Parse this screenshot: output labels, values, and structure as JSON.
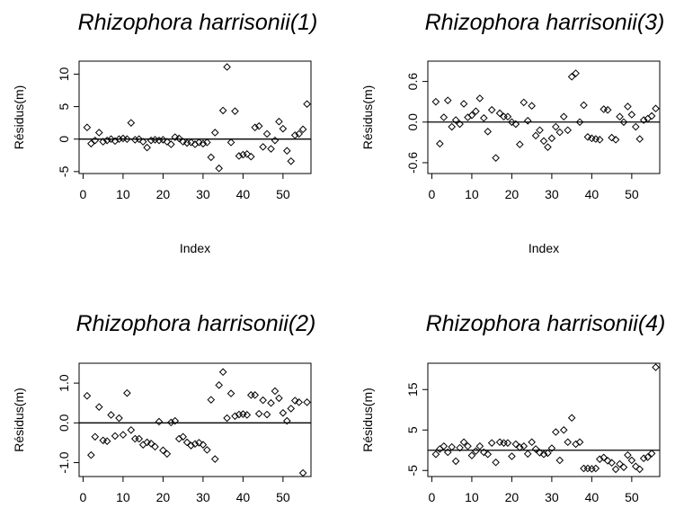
{
  "chart_data": [
    {
      "type": "scatter",
      "title": "Rhizophora harrisonii(1)",
      "ylabel": "Résidus(m)",
      "xlabel": "Index",
      "xlim": [
        -1,
        57
      ],
      "ylim": [
        -5.3,
        12
      ],
      "xticks": [
        "0",
        "10",
        "20",
        "30",
        "40",
        "50"
      ],
      "yticks": [
        "-5",
        "0",
        "5",
        "10"
      ],
      "yticks_values": [
        -5,
        0,
        5,
        10
      ],
      "hline": 0,
      "grid": false,
      "x": [
        1,
        2,
        3,
        4,
        5,
        6,
        7,
        8,
        9,
        10,
        11,
        12,
        13,
        14,
        15,
        16,
        17,
        18,
        19,
        20,
        21,
        22,
        23,
        24,
        25,
        26,
        27,
        28,
        29,
        30,
        31,
        32,
        33,
        34,
        35,
        36,
        37,
        38,
        39,
        40,
        41,
        42,
        43,
        44,
        45,
        46,
        47,
        48,
        49,
        50,
        51,
        52,
        53,
        54,
        55,
        56
      ],
      "y": [
        1.8,
        -0.7,
        -0.2,
        1.0,
        -0.4,
        -0.2,
        0.0,
        -0.3,
        0.0,
        0.1,
        0.0,
        2.5,
        -0.1,
        0.0,
        -0.4,
        -1.3,
        -0.2,
        -0.1,
        -0.2,
        -0.1,
        -0.4,
        -0.8,
        0.3,
        0.1,
        -0.4,
        -0.6,
        -0.5,
        -0.8,
        -0.5,
        -0.7,
        -0.5,
        -2.8,
        1.0,
        -4.5,
        4.4,
        11.1,
        -0.5,
        4.3,
        -2.6,
        -2.4,
        -2.3,
        -2.7,
        1.8,
        2.0,
        -1.2,
        0.8,
        -1.5,
        -0.2,
        2.7,
        1.6,
        -1.8,
        -3.4,
        0.6,
        0.8,
        1.5,
        5.4
      ]
    },
    {
      "type": "scatter",
      "title": "Rhizophora harrisonii(3)",
      "ylabel": "Résidus(m)",
      "xlabel": "Index",
      "xlim": [
        -1,
        57
      ],
      "ylim": [
        -0.76,
        0.9
      ],
      "xticks": [
        "0",
        "10",
        "20",
        "30",
        "40",
        "50"
      ],
      "yticks": [
        "-0.6",
        "0.0",
        "0.6"
      ],
      "yticks_values": [
        -0.6,
        0.0,
        0.6
      ],
      "hline": 0,
      "grid": false,
      "x": [
        1,
        2,
        3,
        4,
        5,
        6,
        7,
        8,
        9,
        10,
        11,
        12,
        13,
        14,
        15,
        16,
        17,
        18,
        19,
        20,
        21,
        22,
        23,
        24,
        25,
        26,
        27,
        28,
        29,
        30,
        31,
        32,
        33,
        34,
        35,
        36,
        37,
        38,
        39,
        40,
        41,
        42,
        43,
        44,
        45,
        46,
        47,
        48,
        49,
        50,
        51,
        52,
        53,
        54,
        55,
        56
      ],
      "y": [
        0.3,
        -0.32,
        0.07,
        0.32,
        -0.07,
        0.03,
        -0.03,
        0.27,
        0.07,
        0.1,
        0.16,
        0.35,
        0.06,
        -0.14,
        0.18,
        -0.53,
        0.13,
        0.08,
        0.08,
        0.0,
        -0.03,
        -0.33,
        0.29,
        0.02,
        0.24,
        -0.2,
        -0.12,
        -0.28,
        -0.37,
        -0.24,
        -0.07,
        -0.15,
        0.08,
        -0.12,
        0.67,
        0.72,
        0.0,
        0.25,
        -0.22,
        -0.24,
        -0.25,
        -0.26,
        0.19,
        0.18,
        -0.23,
        -0.26,
        0.08,
        0.0,
        0.23,
        0.11,
        -0.07,
        -0.25,
        0.03,
        0.05,
        0.09,
        0.2
      ]
    },
    {
      "type": "scatter",
      "title": "Rhizophora harrisonii(2)",
      "ylabel": "Résidus(m)",
      "xlabel": "",
      "xlim": [
        -1,
        57
      ],
      "ylim": [
        -1.35,
        1.5
      ],
      "xticks": [
        "0",
        "10",
        "20",
        "30",
        "40",
        "50"
      ],
      "yticks": [
        "-1.0",
        "0.0",
        "1.0"
      ],
      "yticks_values": [
        -1.0,
        0.0,
        1.0
      ],
      "hline": 0,
      "grid": false,
      "x": [
        1,
        2,
        3,
        4,
        5,
        6,
        7,
        8,
        9,
        10,
        11,
        12,
        13,
        14,
        15,
        16,
        17,
        18,
        19,
        20,
        21,
        22,
        23,
        24,
        25,
        26,
        27,
        28,
        29,
        30,
        31,
        32,
        33,
        34,
        35,
        36,
        37,
        38,
        39,
        40,
        41,
        42,
        43,
        44,
        45,
        46,
        47,
        48,
        49,
        50,
        51,
        52,
        53,
        54,
        55,
        56
      ],
      "y": [
        0.68,
        -0.81,
        -0.35,
        0.4,
        -0.44,
        -0.46,
        0.2,
        -0.33,
        0.12,
        -0.3,
        0.75,
        -0.18,
        -0.4,
        -0.4,
        -0.55,
        -0.49,
        -0.52,
        -0.6,
        0.03,
        -0.69,
        -0.78,
        0.01,
        0.05,
        -0.4,
        -0.35,
        -0.49,
        -0.57,
        -0.53,
        -0.5,
        -0.55,
        -0.68,
        0.58,
        -0.91,
        0.95,
        1.28,
        0.12,
        0.74,
        0.17,
        0.21,
        0.22,
        0.2,
        0.7,
        0.7,
        0.23,
        0.57,
        0.21,
        0.5,
        0.8,
        0.62,
        0.25,
        0.05,
        0.36,
        0.56,
        0.52,
        -1.26,
        0.52
      ]
    },
    {
      "type": "scatter",
      "title": "Rhizophora harrisonii(4)",
      "ylabel": "Résidus(m)",
      "xlabel": "",
      "xlim": [
        -1,
        57
      ],
      "ylim": [
        -6.5,
        21.5
      ],
      "xticks": [
        "0",
        "10",
        "20",
        "30",
        "40",
        "50"
      ],
      "yticks": [
        "-5",
        "5",
        "15"
      ],
      "yticks_values": [
        -5,
        5,
        15
      ],
      "hline": 0,
      "grid": false,
      "x": [
        1,
        2,
        3,
        4,
        5,
        6,
        7,
        8,
        9,
        10,
        11,
        12,
        13,
        14,
        15,
        16,
        17,
        18,
        19,
        20,
        21,
        22,
        23,
        24,
        25,
        26,
        27,
        28,
        29,
        30,
        31,
        32,
        33,
        34,
        35,
        36,
        37,
        38,
        39,
        40,
        41,
        42,
        43,
        44,
        45,
        46,
        47,
        48,
        49,
        50,
        51,
        52,
        53,
        54,
        55,
        56
      ],
      "y": [
        -1.0,
        0.3,
        1.0,
        -0.5,
        0.8,
        -2.7,
        0.6,
        2.0,
        1.0,
        -1.3,
        -0.2,
        1.0,
        -0.5,
        -1.0,
        1.8,
        -3.0,
        2.0,
        1.8,
        1.8,
        -1.5,
        1.5,
        0.7,
        1.0,
        -0.9,
        2.0,
        0.3,
        -0.6,
        -1.0,
        -0.7,
        0.5,
        4.5,
        -2.5,
        5.0,
        2.0,
        8.0,
        1.5,
        2.0,
        -4.5,
        -4.5,
        -4.6,
        -4.5,
        -2.2,
        -1.8,
        -2.6,
        -3.1,
        -4.7,
        -3.4,
        -4.2,
        -1.2,
        -2.5,
        -4.0,
        -4.7,
        -2.0,
        -1.7,
        -0.8,
        20.5
      ]
    }
  ]
}
